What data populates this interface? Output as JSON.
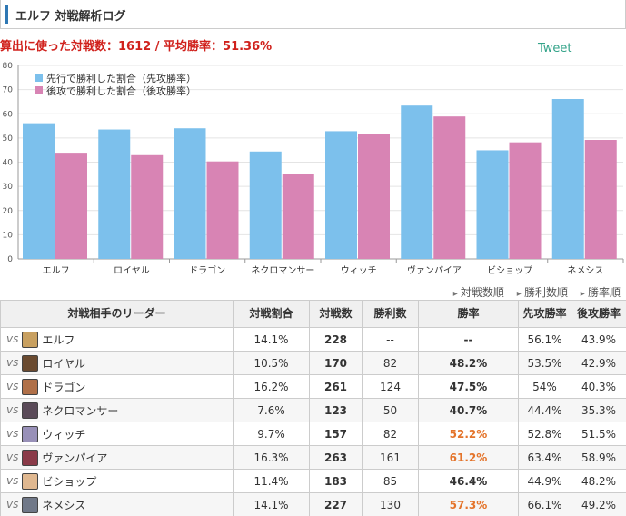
{
  "header": {
    "title": "エルフ 対戦解析ログ"
  },
  "summary": {
    "prefix": "算出に使った対戦数：",
    "battles": "1612",
    "sep": " / ",
    "avg_label": "平均勝率：",
    "avg_rate": "51.36%"
  },
  "tweet": "Tweet",
  "chart_data": {
    "type": "bar",
    "categories": [
      "エルフ",
      "ロイヤル",
      "ドラゴン",
      "ネクロマンサー",
      "ウィッチ",
      "ヴァンパイア",
      "ビショップ",
      "ネメシス"
    ],
    "series": [
      {
        "name": "先行で勝利した割合（先攻勝率）",
        "color": "#7cc0ec",
        "values": [
          56.1,
          53.5,
          54,
          44.4,
          52.8,
          63.4,
          44.9,
          66.1
        ]
      },
      {
        "name": "後攻で勝利した割合（後攻勝率）",
        "color": "#d884b4",
        "values": [
          43.9,
          42.9,
          40.3,
          35.3,
          51.5,
          58.9,
          48.2,
          49.2
        ]
      }
    ],
    "ylim": [
      0,
      80
    ],
    "yticks": [
      0,
      10,
      20,
      30,
      40,
      50,
      60,
      70,
      80
    ],
    "legend": "top-left",
    "grid": true
  },
  "sort_links": [
    "対戦数順",
    "勝利数順",
    "勝率順"
  ],
  "table": {
    "headers": [
      "対戦相手のリーダー",
      "対戦割合",
      "対戦数",
      "勝利数",
      "勝率",
      "先攻勝率",
      "後攻勝率"
    ],
    "vs": "vs",
    "rows": [
      {
        "leader": "エルフ",
        "ratio": "14.1%",
        "battles": "228",
        "wins": "--",
        "rate": "--",
        "first": "56.1%",
        "second": "43.9%",
        "avatar": "#c8a060",
        "hi": false
      },
      {
        "leader": "ロイヤル",
        "ratio": "10.5%",
        "battles": "170",
        "wins": "82",
        "rate": "48.2%",
        "first": "53.5%",
        "second": "42.9%",
        "avatar": "#6a4a30",
        "hi": false
      },
      {
        "leader": "ドラゴン",
        "ratio": "16.2%",
        "battles": "261",
        "wins": "124",
        "rate": "47.5%",
        "first": "54%",
        "second": "40.3%",
        "avatar": "#b07048",
        "hi": false
      },
      {
        "leader": "ネクロマンサー",
        "ratio": "7.6%",
        "battles": "123",
        "wins": "50",
        "rate": "40.7%",
        "first": "44.4%",
        "second": "35.3%",
        "avatar": "#5a4a58",
        "hi": false
      },
      {
        "leader": "ウィッチ",
        "ratio": "9.7%",
        "battles": "157",
        "wins": "82",
        "rate": "52.2%",
        "first": "52.8%",
        "second": "51.5%",
        "avatar": "#9890b8",
        "hi": true
      },
      {
        "leader": "ヴァンパイア",
        "ratio": "16.3%",
        "battles": "263",
        "wins": "161",
        "rate": "61.2%",
        "first": "63.4%",
        "second": "58.9%",
        "avatar": "#8a3a48",
        "hi": true
      },
      {
        "leader": "ビショップ",
        "ratio": "11.4%",
        "battles": "183",
        "wins": "85",
        "rate": "46.4%",
        "first": "44.9%",
        "second": "48.2%",
        "avatar": "#e0b890",
        "hi": false
      },
      {
        "leader": "ネメシス",
        "ratio": "14.1%",
        "battles": "227",
        "wins": "130",
        "rate": "57.3%",
        "first": "66.1%",
        "second": "49.2%",
        "avatar": "#707888",
        "hi": true
      }
    ]
  }
}
